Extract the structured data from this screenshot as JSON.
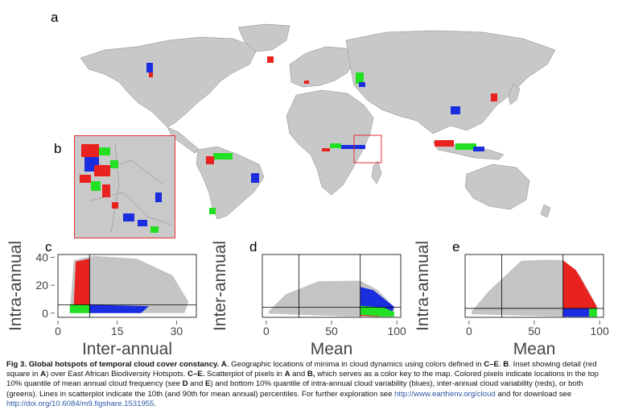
{
  "panels": {
    "a": "a",
    "b": "b",
    "c": "c",
    "d": "d",
    "e": "e"
  },
  "colors": {
    "red": "#e8221f",
    "green": "#22e022",
    "blue": "#1a2ee0",
    "land": "#c8c8c8",
    "grey_points": "#c4c4c4",
    "inset_border": "#e53030",
    "link": "#2b57a6"
  },
  "chart_data": [
    {
      "panel": "c",
      "type": "scatter",
      "xlabel": "Inter-annual",
      "ylabel": "Intra-annual",
      "xlim": [
        0,
        35
      ],
      "ylim": [
        -3,
        42
      ],
      "xticks": [
        "0",
        "15",
        "30"
      ],
      "yticks": [
        "0",
        "20",
        "40"
      ],
      "ref_lines": {
        "vertical": 8,
        "horizontal": 6
      },
      "series": [
        {
          "color": "grey",
          "envelope": [
            [
              3,
              0
            ],
            [
              4,
              38
            ],
            [
              9,
              41
            ],
            [
              20,
              39
            ],
            [
              29,
              27
            ],
            [
              33,
              8
            ],
            [
              32,
              0
            ]
          ]
        },
        {
          "color": "red",
          "envelope": [
            [
              4,
              6
            ],
            [
              4.5,
              37
            ],
            [
              8,
              39
            ],
            [
              8,
              6
            ]
          ]
        },
        {
          "color": "green",
          "envelope": [
            [
              3,
              0
            ],
            [
              3,
              6
            ],
            [
              8,
              6
            ],
            [
              8,
              0
            ]
          ]
        },
        {
          "color": "blue",
          "envelope": [
            [
              8,
              0
            ],
            [
              8,
              6
            ],
            [
              23,
              5
            ],
            [
              21,
              0
            ]
          ]
        }
      ]
    },
    {
      "panel": "d",
      "type": "scatter",
      "xlabel": "Mean",
      "ylabel": "Inter-annual",
      "xlim": [
        -3,
        103
      ],
      "ylim": [
        0,
        12
      ],
      "xticks": [
        "0",
        "50",
        "100"
      ],
      "yticks": [],
      "ref_lines": {
        "vertical": [
          25,
          72
        ],
        "horizontal": 1.9
      },
      "series": [
        {
          "color": "grey",
          "envelope": [
            [
              2,
              1.2
            ],
            [
              15,
              4.4
            ],
            [
              40,
              6.9
            ],
            [
              72,
              7
            ],
            [
              85,
              5.3
            ],
            [
              98,
              2
            ],
            [
              98,
              0.1
            ],
            [
              60,
              0.2
            ],
            [
              2,
              0.7
            ]
          ]
        },
        {
          "color": "blue",
          "envelope": [
            [
              72,
              5.8
            ],
            [
              82,
              5.2
            ],
            [
              98,
              2
            ],
            [
              95,
              0.3
            ],
            [
              72,
              1.9
            ]
          ]
        },
        {
          "color": "red",
          "envelope": [
            [
              72,
              1.8
            ],
            [
              88,
              1.4
            ],
            [
              97,
              0.3
            ],
            [
              85,
              0.1
            ],
            [
              72,
              0.3
            ]
          ]
        },
        {
          "color": "green",
          "envelope": [
            [
              72,
              2.2
            ],
            [
              90,
              1.9
            ],
            [
              98,
              1
            ],
            [
              98,
              0.2
            ],
            [
              90,
              0.1
            ],
            [
              72,
              0.5
            ]
          ]
        }
      ]
    },
    {
      "panel": "e",
      "type": "scatter",
      "xlabel": "Mean",
      "ylabel": "Intra-annual",
      "xlim": [
        -3,
        103
      ],
      "ylim": [
        0,
        12
      ],
      "xticks": [
        "0",
        "50",
        "100"
      ],
      "yticks": [],
      "ref_lines": {
        "vertical": [
          25,
          72
        ],
        "horizontal": 1.7
      },
      "series": [
        {
          "color": "grey",
          "envelope": [
            [
              2,
              1.1
            ],
            [
              15,
              5
            ],
            [
              40,
              10.8
            ],
            [
              60,
              11
            ],
            [
              72,
              10.9
            ],
            [
              85,
              8
            ],
            [
              98,
              2
            ],
            [
              98,
              0.1
            ],
            [
              60,
              0.2
            ],
            [
              2,
              0.6
            ]
          ]
        },
        {
          "color": "red",
          "envelope": [
            [
              72,
              10.9
            ],
            [
              82,
              9
            ],
            [
              98,
              2
            ],
            [
              97,
              1.6
            ],
            [
              72,
              1.6
            ]
          ]
        },
        {
          "color": "blue",
          "envelope": [
            [
              72,
              1.7
            ],
            [
              92,
              1.7
            ],
            [
              92,
              0.1
            ],
            [
              72,
              0.1
            ]
          ]
        },
        {
          "color": "green",
          "envelope": [
            [
              92,
              1.8
            ],
            [
              98,
              1.8
            ],
            [
              98,
              0.1
            ],
            [
              92,
              0.1
            ]
          ]
        }
      ]
    }
  ],
  "caption": {
    "bold_title": "Fig 3. Global hotspots of temporal cloud cover constancy.",
    "a_bold": "A",
    "t1": ". Geographic locations of minima in cloud dynamics using colors defined in ",
    "ce_bold": "C–E",
    "t2": ". ",
    "b_bold": "B",
    "t3": ". Inset showing detail (red square in ",
    "a2_bold": "A",
    "t4": ") over East African Biodiversity Hotspots. ",
    "ce2_bold": "C–E.",
    "t5": " Scatterplot of pixels in ",
    "a3_bold": "A",
    "t6": " and ",
    "b2_bold": "B,",
    "t7": " which serves as a color key to the map. Colored pixels indicate locations in the top 10% quantile of mean annual cloud frequency (see ",
    "d_bold": "D",
    "t8": " and ",
    "e_bold": "E",
    "t9": ") and bottom 10% quantile of intra-annual cloud variability (blues), inter-annual cloud variability (reds), or both (greens). Lines in scatterplot indicate the 10th (and 90th for mean annual) percentiles. For further exploration see ",
    "link1": "http://www.earthenv.org/cloud",
    "t10": " and for download see ",
    "link2": "http://doi.org/10.6084/m9.figshare.1531955",
    "t11": "."
  }
}
